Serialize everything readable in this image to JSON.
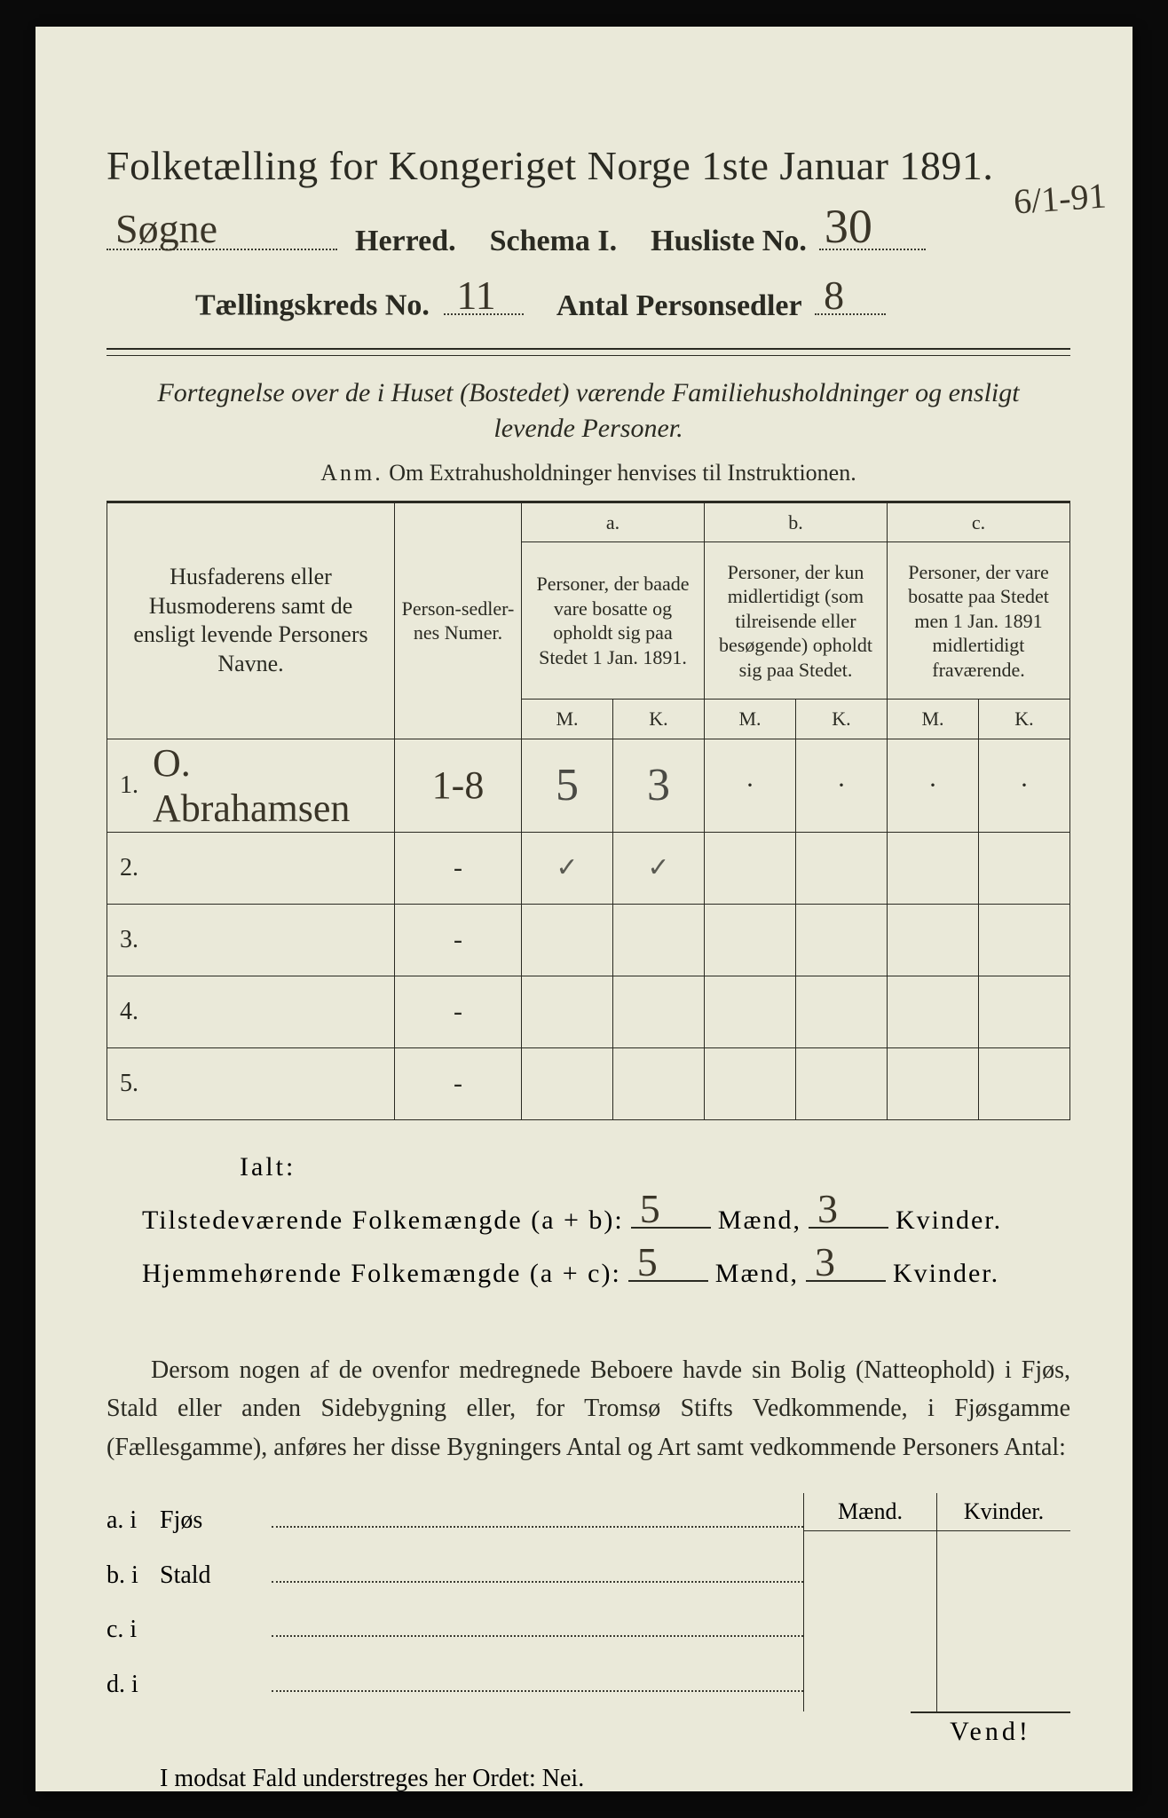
{
  "colors": {
    "paper": "#eae9d9",
    "ink": "#2a2a22",
    "handwriting": "#3a3528",
    "pencil": "#4a4a44",
    "background": "#0a0a0a"
  },
  "header": {
    "title": "Folketælling for Kongeriget Norge 1ste Januar 1891.",
    "herred_handwritten": "Søgne",
    "herred_label": "Herred.",
    "schema_label": "Schema I.",
    "husliste_label": "Husliste No.",
    "husliste_no": "30",
    "margin_date": "6/1-91",
    "kreds_label": "Tællingskreds No.",
    "kreds_no": "11",
    "antal_label": "Antal Personsedler",
    "antal_no": "8"
  },
  "subhead": {
    "line1": "Fortegnelse over de i Huset (Bostedet) værende Familiehusholdninger og ensligt",
    "line2": "levende Personer.",
    "anm_label": "Anm.",
    "anm_text": "Om Extrahusholdninger henvises til Instruktionen."
  },
  "table": {
    "col_names": "Husfaderens eller Husmoderens samt de ensligt levende Personers Navne.",
    "col_person": "Person-sedler-nes Numer.",
    "col_a_label": "a.",
    "col_a_text": "Personer, der baade vare bosatte og opholdt sig paa Stedet 1 Jan. 1891.",
    "col_b_label": "b.",
    "col_b_text": "Personer, der kun midlertidigt (som tilreisende eller besøgende) opholdt sig paa Stedet.",
    "col_c_label": "c.",
    "col_c_text": "Personer, der vare bosatte paa Stedet men 1 Jan. 1891 midlertidigt fraværende.",
    "mk_m": "M.",
    "mk_k": "K.",
    "rows": [
      {
        "n": "1.",
        "name": "O. Abrahamsen",
        "person": "1-8",
        "a_m": "5",
        "a_k": "3",
        "b_m": "·",
        "b_k": "·",
        "c_m": "·",
        "c_k": "·"
      },
      {
        "n": "2.",
        "name": "",
        "person": "-",
        "a_m": "✓",
        "a_k": "✓",
        "b_m": "",
        "b_k": "",
        "c_m": "",
        "c_k": ""
      },
      {
        "n": "3.",
        "name": "",
        "person": "-",
        "a_m": "",
        "a_k": "",
        "b_m": "",
        "b_k": "",
        "c_m": "",
        "c_k": ""
      },
      {
        "n": "4.",
        "name": "",
        "person": "-",
        "a_m": "",
        "a_k": "",
        "b_m": "",
        "b_k": "",
        "c_m": "",
        "c_k": ""
      },
      {
        "n": "5.",
        "name": "",
        "person": "-",
        "a_m": "",
        "a_k": "",
        "b_m": "",
        "b_k": "",
        "c_m": "",
        "c_k": ""
      }
    ]
  },
  "summary": {
    "ialt": "Ialt:",
    "line1_label": "Tilstedeværende Folkemængde (a + b):",
    "line1_m": "5",
    "line1_k": "3",
    "line2_label": "Hjemmehørende Folkemængde (a + c):",
    "line2_m": "5",
    "line2_k": "3",
    "maend": "Mænd,",
    "kvinder": "Kvinder."
  },
  "para": "Dersom nogen af de ovenfor medregnede Beboere havde sin Bolig (Natteophold) i Fjøs, Stald eller anden Sidebygning eller, for Tromsø Stifts Vedkommende, i Fjøsgamme (Fællesgamme), anføres her disse Bygningers Antal og Art samt vedkommende Personers Antal:",
  "lower": {
    "maend": "Mænd.",
    "kvinder": "Kvinder.",
    "rows": [
      {
        "l": "a.  i",
        "t": "Fjøs"
      },
      {
        "l": "b.  i",
        "t": "Stald"
      },
      {
        "l": "c.  i",
        "t": ""
      },
      {
        "l": "d.  i",
        "t": ""
      }
    ]
  },
  "nei": "I modsat Fald understreges her Ordet: Nei.",
  "vend": "Vend!"
}
